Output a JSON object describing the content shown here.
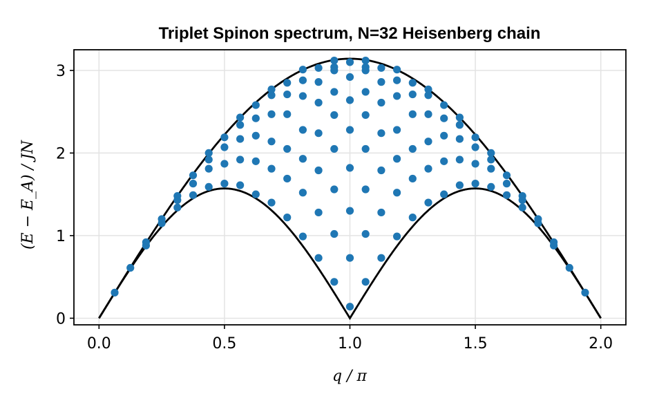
{
  "chart_data": {
    "type": "scatter",
    "title": "Triplet Spinon spectrum, N=32 Heisenberg chain",
    "xlabel": "q / π",
    "ylabel": "(E − E_A) / JN",
    "xlim": [
      -0.1,
      2.1
    ],
    "ylim": [
      -0.08,
      3.25
    ],
    "xticks": [
      "0.0",
      "0.5",
      "1.0",
      "1.5",
      "2.0"
    ],
    "xtick_values": [
      0,
      0.5,
      1,
      1.5,
      2
    ],
    "yticks": [
      "0",
      "1",
      "2",
      "3"
    ],
    "ytick_values": [
      0,
      1,
      2,
      3
    ],
    "grid": true,
    "marker_color": "#1f77b4",
    "curve_color": "#000000",
    "bounds": [
      {
        "role": "upper",
        "formula": "pi * sin(pi*q/2)"
      },
      {
        "role": "lower",
        "formula": "(pi/2) * |sin(pi*q)|"
      }
    ],
    "points": [
      [
        0.0625,
        0.31
      ],
      [
        0.125,
        0.61
      ],
      [
        0.1875,
        0.88
      ],
      [
        0.1875,
        0.92
      ],
      [
        0.25,
        1.15
      ],
      [
        0.25,
        1.2
      ],
      [
        0.3125,
        1.34
      ],
      [
        0.3125,
        1.43
      ],
      [
        0.3125,
        1.48
      ],
      [
        0.375,
        1.49
      ],
      [
        0.375,
        1.63
      ],
      [
        0.375,
        1.73
      ],
      [
        0.4375,
        1.59
      ],
      [
        0.4375,
        1.81
      ],
      [
        0.4375,
        1.92
      ],
      [
        0.4375,
        2.0
      ],
      [
        0.5,
        1.63
      ],
      [
        0.5,
        1.87
      ],
      [
        0.5,
        2.07
      ],
      [
        0.5,
        2.19
      ],
      [
        0.5625,
        1.61
      ],
      [
        0.5625,
        1.92
      ],
      [
        0.5625,
        2.17
      ],
      [
        0.5625,
        2.34
      ],
      [
        0.5625,
        2.43
      ],
      [
        0.625,
        1.5
      ],
      [
        0.625,
        1.9
      ],
      [
        0.625,
        2.21
      ],
      [
        0.625,
        2.42
      ],
      [
        0.625,
        2.58
      ],
      [
        0.6875,
        1.4
      ],
      [
        0.6875,
        1.81
      ],
      [
        0.6875,
        2.14
      ],
      [
        0.6875,
        2.47
      ],
      [
        0.6875,
        2.7
      ],
      [
        0.6875,
        2.77
      ],
      [
        0.75,
        1.22
      ],
      [
        0.75,
        1.69
      ],
      [
        0.75,
        2.05
      ],
      [
        0.75,
        2.47
      ],
      [
        0.75,
        2.71
      ],
      [
        0.75,
        2.85
      ],
      [
        0.8125,
        0.99
      ],
      [
        0.8125,
        1.52
      ],
      [
        0.8125,
        1.93
      ],
      [
        0.8125,
        2.28
      ],
      [
        0.8125,
        2.69
      ],
      [
        0.8125,
        2.88
      ],
      [
        0.8125,
        3.01
      ],
      [
        0.875,
        0.73
      ],
      [
        0.875,
        1.28
      ],
      [
        0.875,
        1.79
      ],
      [
        0.875,
        2.24
      ],
      [
        0.875,
        2.61
      ],
      [
        0.875,
        2.86
      ],
      [
        0.875,
        3.03
      ],
      [
        0.9375,
        0.44
      ],
      [
        0.9375,
        1.02
      ],
      [
        0.9375,
        1.56
      ],
      [
        0.9375,
        2.05
      ],
      [
        0.9375,
        2.46
      ],
      [
        0.9375,
        2.74
      ],
      [
        0.9375,
        3.0
      ],
      [
        0.9375,
        3.04
      ],
      [
        0.9375,
        3.12
      ],
      [
        1.0,
        0.14
      ],
      [
        1.0,
        0.73
      ],
      [
        1.0,
        1.3
      ],
      [
        1.0,
        1.82
      ],
      [
        1.0,
        2.28
      ],
      [
        1.0,
        2.64
      ],
      [
        1.0,
        2.92
      ],
      [
        1.0,
        3.1
      ]
    ]
  }
}
